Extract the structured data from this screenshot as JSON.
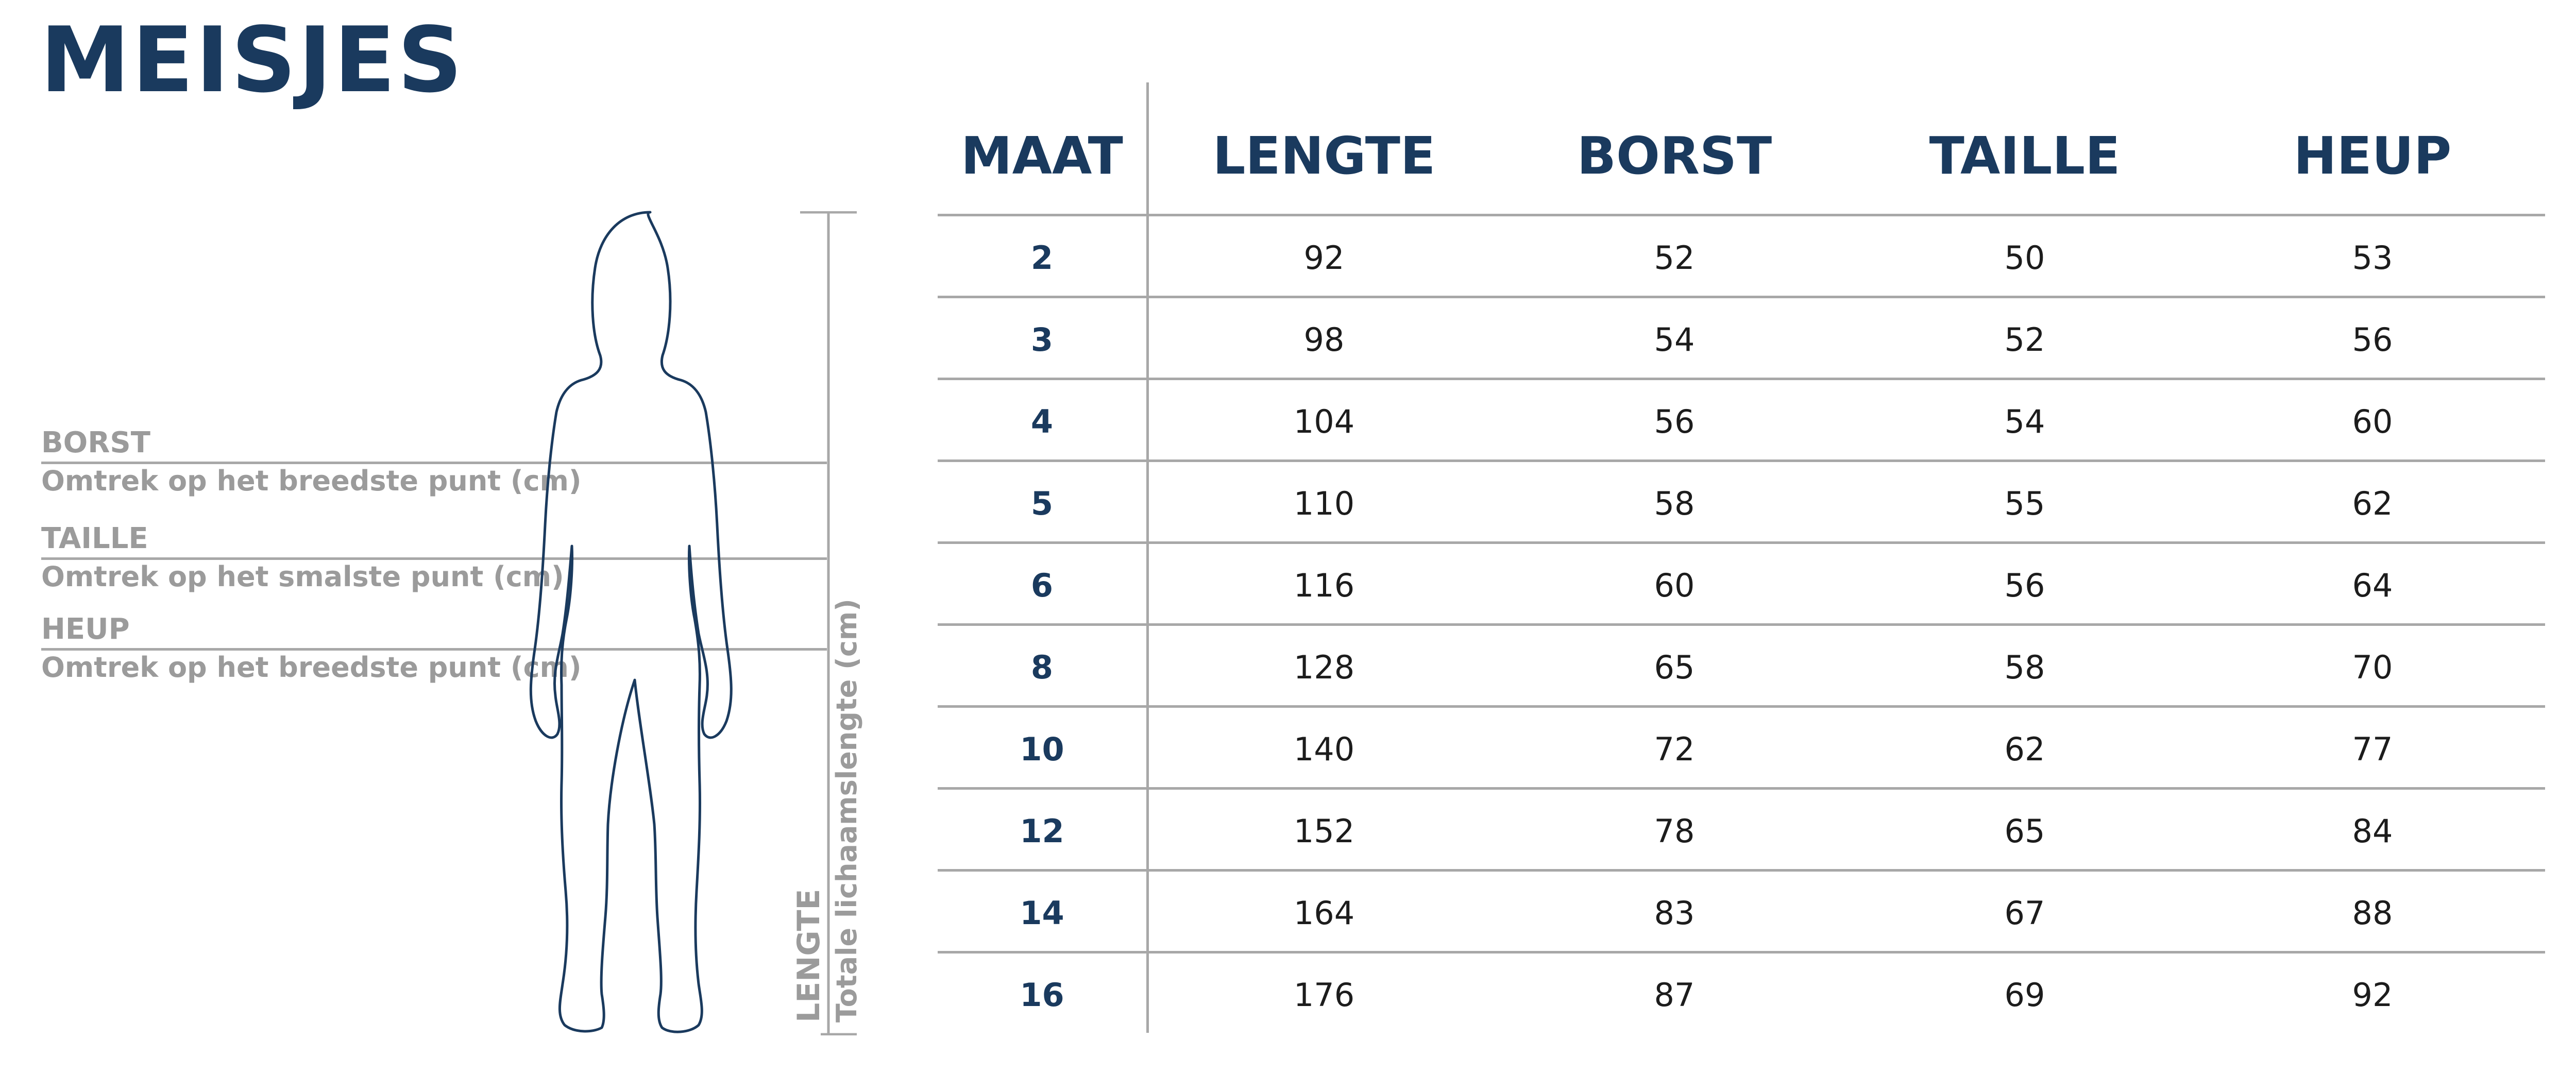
{
  "colors": {
    "navy": "#1a3a5e",
    "label_grey": "#9b9b9b",
    "line_grey": "#a8a8a8",
    "value_text": "#1c1c1c"
  },
  "title": "MEISJES",
  "measurements": [
    {
      "label": "BORST",
      "description": "Omtrek op het breedste punt (cm)"
    },
    {
      "label": "TAILLE",
      "description": "Omtrek op het smalste punt (cm)"
    },
    {
      "label": "HEUP",
      "description": "Omtrek op het breedste punt (cm)"
    }
  ],
  "length": {
    "label": "LENGTE",
    "description": "Totale lichaamslengte (cm)"
  },
  "table": {
    "headers": [
      "MAAT",
      "LENGTE",
      "BORST",
      "TAILLE",
      "HEUP"
    ],
    "rows": [
      [
        "2",
        "92",
        "52",
        "50",
        "53"
      ],
      [
        "3",
        "98",
        "54",
        "52",
        "56"
      ],
      [
        "4",
        "104",
        "56",
        "54",
        "60"
      ],
      [
        "5",
        "110",
        "58",
        "55",
        "62"
      ],
      [
        "6",
        "116",
        "60",
        "56",
        "64"
      ],
      [
        "8",
        "128",
        "65",
        "58",
        "70"
      ],
      [
        "10",
        "140",
        "72",
        "62",
        "77"
      ],
      [
        "12",
        "152",
        "78",
        "65",
        "84"
      ],
      [
        "14",
        "164",
        "83",
        "67",
        "88"
      ],
      [
        "16",
        "176",
        "87",
        "69",
        "92"
      ]
    ]
  }
}
